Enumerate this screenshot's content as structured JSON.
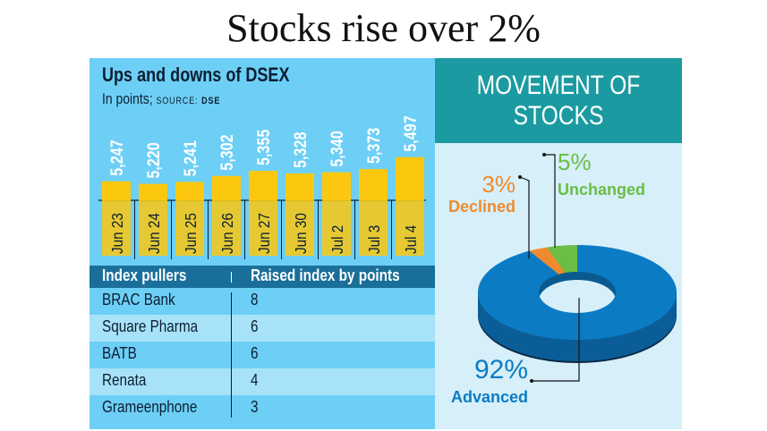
{
  "headline": "Stocks rise over 2%",
  "chart_data": [
    {
      "type": "bar",
      "title": "Ups and downs of DSEX",
      "subtitle": "In points;",
      "source_label": "SOURCE:",
      "source": "DSE",
      "categories": [
        "Jun 23",
        "Jun 24",
        "Jun 25",
        "Jun 26",
        "Jun 27",
        "Jun 30",
        "Jul 2",
        "Jul 3",
        "Jul 4"
      ],
      "values": [
        5247,
        5220,
        5241,
        5302,
        5355,
        5328,
        5340,
        5373,
        5497
      ],
      "value_labels": [
        "5,247",
        "5,220",
        "5,241",
        "5,302",
        "5,355",
        "5,328",
        "5,340",
        "5,373",
        "5,497"
      ],
      "ylim": [
        5050,
        5500
      ],
      "bar_color": "#fcc80f"
    },
    {
      "type": "pie",
      "style": "3d-donut",
      "title": "MOVEMENT OF STOCKS",
      "slices": [
        {
          "label": "Advanced",
          "value": 92,
          "text": "92%",
          "color": "#0b7cc4"
        },
        {
          "label": "Declined",
          "value": 3,
          "text": "3%",
          "color": "#f08a2c"
        },
        {
          "label": "Unchanged",
          "value": 5,
          "text": "5%",
          "color": "#6bbd45"
        }
      ]
    }
  ],
  "table": {
    "headers": [
      "Index pullers",
      "Raised index by points"
    ],
    "rows": [
      [
        "BRAC Bank",
        "8"
      ],
      [
        "Square Pharma",
        "6"
      ],
      [
        "BATB",
        "6"
      ],
      [
        "Renata",
        "4"
      ],
      [
        "Grameenphone",
        "3"
      ]
    ]
  },
  "colors": {
    "panel": "#6dcff6",
    "header": "#1a6f9a",
    "teal": "#1b9ba1",
    "row_alt": "#a8e2f9"
  }
}
